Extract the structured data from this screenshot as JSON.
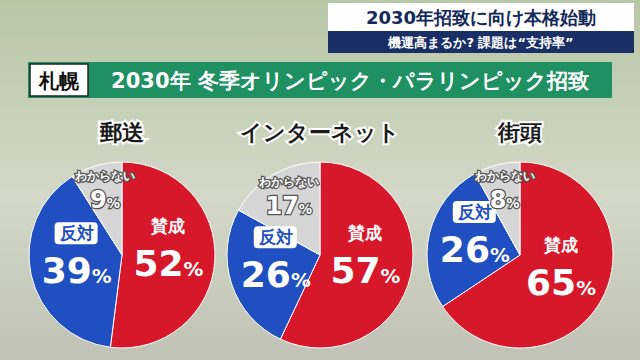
{
  "header": {
    "location": "札幌",
    "title": "2030年 冬季オリンピック・パラリンピック招致",
    "banner": "2030年招致に向け本格始動",
    "subbanner": "機運高まるか? 課題は“支持率”"
  },
  "chart_data": [
    {
      "type": "pie",
      "title": "郵送",
      "categories": [
        "賛成",
        "反対",
        "わからない"
      ],
      "values": [
        52,
        39,
        9
      ],
      "value_labels": [
        "52%",
        "39%",
        "9%"
      ],
      "colors": [
        "#d7182a",
        "#1f4fc0",
        "#d6d6d6"
      ],
      "data_labels": true
    },
    {
      "type": "pie",
      "title": "インターネット",
      "categories": [
        "賛成",
        "反対",
        "わからない"
      ],
      "values": [
        57,
        26,
        17
      ],
      "value_labels": [
        "57%",
        "26%",
        "17%"
      ],
      "colors": [
        "#d7182a",
        "#1f4fc0",
        "#d6d6d6"
      ],
      "data_labels": true
    },
    {
      "type": "pie",
      "title": "街頭",
      "categories": [
        "賛成",
        "反対",
        "わからない"
      ],
      "values": [
        65,
        26,
        8
      ],
      "value_labels": [
        "65%",
        "26%",
        "8%"
      ],
      "colors": [
        "#d7182a",
        "#1f4fc0",
        "#d6d6d6"
      ],
      "data_labels": true
    }
  ]
}
